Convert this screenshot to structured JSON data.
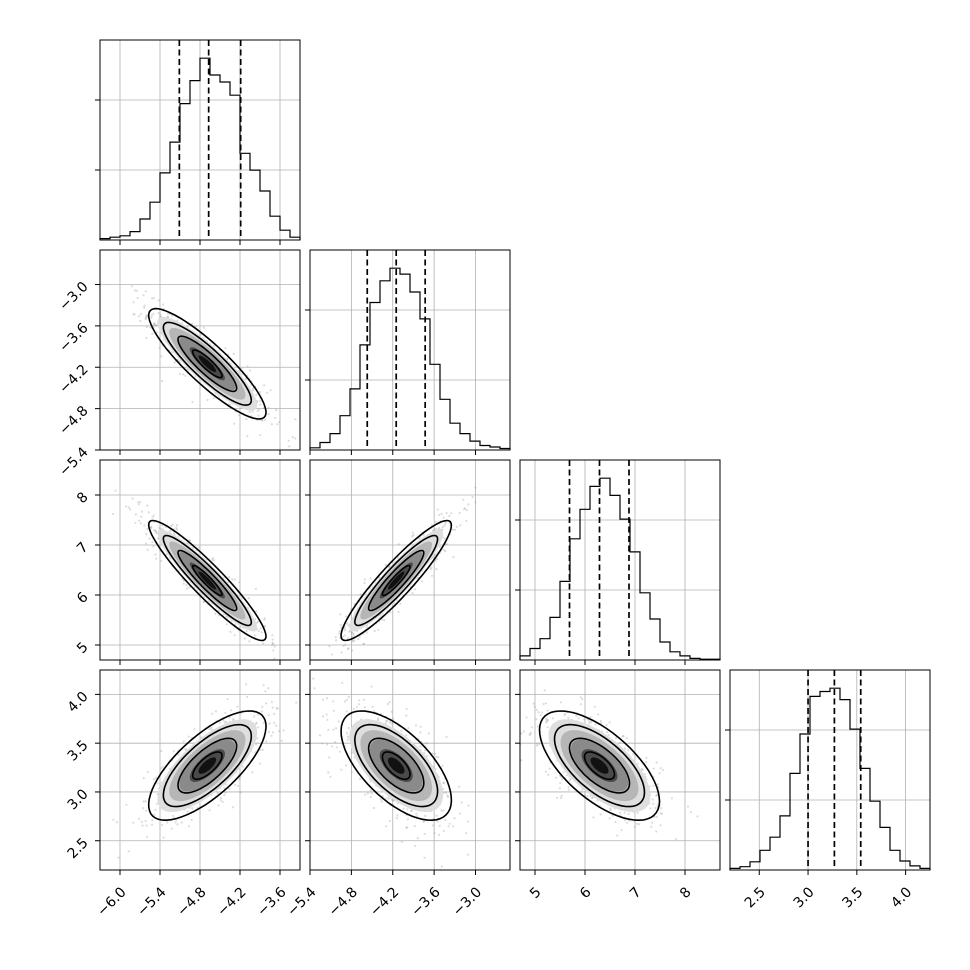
{
  "chart_data": {
    "type": "corner",
    "n_params": 4,
    "params": [
      {
        "range": [
          -6.3,
          -3.3
        ],
        "ticks": [
          -6.0,
          -5.4,
          -4.8,
          -4.2,
          -3.6
        ],
        "tick_labels": [
          "−6.0",
          "−5.4",
          "−4.8",
          "−4.2",
          "−3.6"
        ],
        "mean": -4.69,
        "sd": 0.44,
        "quantiles": [
          -5.11,
          -4.67,
          -4.19
        ],
        "hist_bin_edges": [
          -6.3,
          -6.15,
          -6.0,
          -5.85,
          -5.7,
          -5.55,
          -5.4,
          -5.25,
          -5.1,
          -4.95,
          -4.8,
          -4.65,
          -4.5,
          -4.35,
          -4.2,
          -4.05,
          -3.9,
          -3.75,
          -3.6,
          -3.45,
          -3.3
        ],
        "hist_counts": [
          2,
          4,
          6,
          12,
          30,
          54,
          96,
          140,
          195,
          228,
          260,
          236,
          226,
          207,
          124,
          100,
          70,
          34,
          14,
          4
        ]
      },
      {
        "range": [
          -5.4,
          -2.5
        ],
        "ticks": [
          -5.4,
          -4.8,
          -4.2,
          -3.6,
          -3.0
        ],
        "tick_labels": [
          "−5.4",
          "−4.8",
          "−4.2",
          "−3.6",
          "−3.0"
        ],
        "mean": -4.15,
        "sd": 0.4,
        "quantiles": [
          -4.57,
          -4.15,
          -3.73
        ],
        "hist_bin_edges": [
          -5.4,
          -5.255,
          -5.11,
          -4.965,
          -4.82,
          -4.675,
          -4.53,
          -4.385,
          -4.24,
          -4.095,
          -3.95,
          -3.805,
          -3.66,
          -3.515,
          -3.37,
          -3.225,
          -3.08,
          -2.935,
          -2.79,
          -2.645,
          -2.5
        ],
        "hist_counts": [
          3,
          10,
          22,
          46,
          82,
          141,
          198,
          227,
          244,
          236,
          212,
          176,
          115,
          68,
          36,
          22,
          12,
          6,
          4,
          2
        ]
      },
      {
        "range": [
          4.7,
          8.7
        ],
        "ticks": [
          5,
          6,
          7,
          8
        ],
        "tick_labels": [
          "5",
          "6",
          "7",
          "8"
        ],
        "mean": 6.29,
        "sd": 0.6,
        "quantiles": [
          5.69,
          6.29,
          6.88
        ],
        "hist_bin_edges": [
          4.7,
          4.9,
          5.1,
          5.3,
          5.5,
          5.7,
          5.9,
          6.1,
          6.3,
          6.5,
          6.7,
          6.9,
          7.1,
          7.3,
          7.5,
          7.7,
          7.9,
          8.1,
          8.3,
          8.5,
          8.7
        ],
        "hist_counts": [
          5,
          14,
          26,
          52,
          96,
          148,
          184,
          212,
          222,
          201,
          172,
          132,
          82,
          50,
          22,
          10,
          5,
          2,
          1,
          1
        ]
      },
      {
        "range": [
          2.2,
          4.25
        ],
        "ticks": [
          2.5,
          3.0,
          3.5,
          4.0
        ],
        "tick_labels": [
          "2.5",
          "3.0",
          "3.5",
          "4.0"
        ],
        "mean": 3.27,
        "sd": 0.28,
        "quantiles": [
          3.0,
          3.27,
          3.54
        ],
        "hist_bin_edges": [
          2.2,
          2.3025,
          2.405,
          2.5075,
          2.61,
          2.7125,
          2.815,
          2.9175,
          3.02,
          3.1225,
          3.225,
          3.3275,
          3.43,
          3.5325,
          3.635,
          3.7375,
          3.84,
          3.9425,
          4.045,
          4.1475,
          4.25
        ],
        "hist_counts": [
          2,
          4,
          10,
          24,
          40,
          66,
          118,
          166,
          212,
          218,
          222,
          208,
          172,
          124,
          84,
          52,
          24,
          11,
          5,
          2
        ]
      }
    ],
    "correlations": [
      [
        1.0,
        -0.88,
        -0.93,
        0.72
      ],
      [
        -0.88,
        1.0,
        0.92,
        -0.63
      ],
      [
        -0.93,
        0.92,
        1.0,
        -0.65
      ],
      [
        0.72,
        -0.63,
        -0.65,
        1.0
      ]
    ],
    "contour_levels_sigma": [
      0.5,
      1.0,
      1.5,
      2.0
    ],
    "grid": true
  }
}
